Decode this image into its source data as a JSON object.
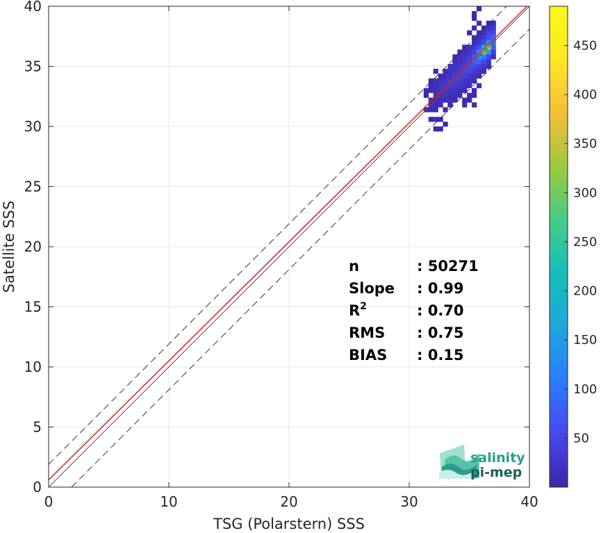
{
  "chart_data": {
    "type": "heatmap",
    "title": "",
    "xlabel": "TSG (Polarstern) SSS",
    "ylabel": "Satellite SSS",
    "xlim": [
      0,
      40
    ],
    "ylim": [
      0,
      40
    ],
    "xticks": [
      0,
      10,
      20,
      30,
      40
    ],
    "yticks": [
      0,
      5,
      10,
      15,
      20,
      25,
      30,
      35,
      40
    ],
    "grid": true,
    "colormap": "parula",
    "colorbar": {
      "range": [
        0,
        490
      ],
      "ticks": [
        50,
        100,
        150,
        200,
        250,
        300,
        350,
        400,
        450
      ],
      "colors": [
        "#3e26a8",
        "#4748f0",
        "#2c7cff",
        "#1ea8db",
        "#13beb8",
        "#48cb86",
        "#9cca3f",
        "#f4bd37",
        "#fde723",
        "#f9fb15"
      ]
    },
    "lines": [
      {
        "name": "1:1 line",
        "intercept": 0,
        "slope": 1,
        "style": "solid",
        "color": "#555555"
      },
      {
        "name": "regression",
        "intercept": 0.6,
        "slope": 0.99,
        "style": "solid",
        "color": "#e41a1c"
      },
      {
        "name": "upper bound",
        "intercept": 1.9,
        "slope": 1,
        "style": "dashed",
        "color": "#333333"
      },
      {
        "name": "lower bound",
        "intercept": -1.9,
        "slope": 1,
        "style": "dashed",
        "color": "#333333"
      }
    ],
    "density_cells": [
      [
        32.0,
        29.6,
        5
      ],
      [
        32.4,
        29.6,
        4
      ],
      [
        32.8,
        30.0,
        5
      ],
      [
        31.6,
        30.4,
        5
      ],
      [
        32.0,
        30.4,
        6
      ],
      [
        32.4,
        30.4,
        5
      ],
      [
        31.2,
        31.2,
        6
      ],
      [
        31.6,
        31.2,
        8
      ],
      [
        32.0,
        31.2,
        7
      ],
      [
        32.8,
        31.2,
        6
      ],
      [
        31.6,
        31.6,
        8
      ],
      [
        32.0,
        31.6,
        10
      ],
      [
        32.4,
        31.6,
        9
      ],
      [
        33.2,
        31.6,
        6
      ],
      [
        34.4,
        31.6,
        8
      ],
      [
        35.2,
        31.6,
        5
      ],
      [
        31.6,
        32.0,
        7
      ],
      [
        32.0,
        32.0,
        9
      ],
      [
        32.4,
        32.0,
        15
      ],
      [
        32.8,
        32.0,
        12
      ],
      [
        33.2,
        32.0,
        10
      ],
      [
        33.6,
        32.0,
        8
      ],
      [
        34.4,
        32.0,
        10
      ],
      [
        34.8,
        32.0,
        8
      ],
      [
        31.2,
        32.4,
        6
      ],
      [
        32.0,
        32.4,
        10
      ],
      [
        32.4,
        32.4,
        18
      ],
      [
        32.8,
        32.4,
        22
      ],
      [
        33.2,
        32.4,
        15
      ],
      [
        33.6,
        32.4,
        12
      ],
      [
        34.0,
        32.4,
        10
      ],
      [
        34.8,
        32.4,
        9
      ],
      [
        35.2,
        32.4,
        7
      ],
      [
        31.2,
        32.8,
        6
      ],
      [
        31.6,
        32.8,
        9
      ],
      [
        32.0,
        32.8,
        12
      ],
      [
        32.4,
        32.8,
        20
      ],
      [
        32.8,
        32.8,
        26
      ],
      [
        33.2,
        32.8,
        24
      ],
      [
        33.6,
        32.8,
        18
      ],
      [
        34.0,
        32.8,
        14
      ],
      [
        34.4,
        32.8,
        12
      ],
      [
        35.2,
        32.8,
        8
      ],
      [
        31.6,
        33.2,
        9
      ],
      [
        32.0,
        33.2,
        14
      ],
      [
        32.4,
        33.2,
        22
      ],
      [
        32.8,
        33.2,
        30
      ],
      [
        33.2,
        33.2,
        34
      ],
      [
        33.6,
        33.2,
        28
      ],
      [
        34.0,
        33.2,
        20
      ],
      [
        34.4,
        33.2,
        16
      ],
      [
        34.8,
        33.2,
        12
      ],
      [
        35.6,
        33.2,
        9
      ],
      [
        31.6,
        33.6,
        7
      ],
      [
        32.0,
        33.6,
        10
      ],
      [
        32.4,
        33.6,
        16
      ],
      [
        32.8,
        33.6,
        24
      ],
      [
        33.2,
        33.6,
        36
      ],
      [
        33.6,
        33.6,
        40
      ],
      [
        34.0,
        33.6,
        34
      ],
      [
        34.4,
        33.6,
        26
      ],
      [
        34.8,
        33.6,
        18
      ],
      [
        35.2,
        33.6,
        14
      ],
      [
        32.4,
        34.0,
        10
      ],
      [
        32.8,
        34.0,
        16
      ],
      [
        33.2,
        34.0,
        26
      ],
      [
        33.6,
        34.0,
        38
      ],
      [
        34.0,
        34.0,
        44
      ],
      [
        34.4,
        34.0,
        40
      ],
      [
        34.8,
        34.0,
        30
      ],
      [
        35.2,
        34.0,
        20
      ],
      [
        35.6,
        34.0,
        12
      ],
      [
        32.0,
        34.4,
        8
      ],
      [
        32.8,
        34.4,
        12
      ],
      [
        33.2,
        34.4,
        18
      ],
      [
        33.6,
        34.4,
        26
      ],
      [
        34.0,
        34.4,
        38
      ],
      [
        34.4,
        34.4,
        50
      ],
      [
        34.8,
        34.4,
        46
      ],
      [
        35.2,
        34.4,
        34
      ],
      [
        35.6,
        34.4,
        22
      ],
      [
        36.0,
        34.4,
        12
      ],
      [
        33.2,
        34.8,
        12
      ],
      [
        33.6,
        34.8,
        18
      ],
      [
        34.0,
        34.8,
        26
      ],
      [
        34.4,
        34.8,
        40
      ],
      [
        34.8,
        34.8,
        62
      ],
      [
        35.2,
        34.8,
        58
      ],
      [
        35.6,
        34.8,
        40
      ],
      [
        36.0,
        34.8,
        22
      ],
      [
        36.4,
        34.8,
        10
      ],
      [
        33.6,
        35.2,
        12
      ],
      [
        34.0,
        35.2,
        18
      ],
      [
        34.4,
        35.2,
        28
      ],
      [
        34.8,
        35.2,
        48
      ],
      [
        35.2,
        35.2,
        90
      ],
      [
        35.6,
        35.2,
        80
      ],
      [
        36.0,
        35.2,
        50
      ],
      [
        36.4,
        35.2,
        24
      ],
      [
        33.6,
        35.6,
        8
      ],
      [
        34.0,
        35.6,
        14
      ],
      [
        34.4,
        35.6,
        20
      ],
      [
        34.8,
        35.6,
        34
      ],
      [
        35.2,
        35.6,
        80
      ],
      [
        35.6,
        35.6,
        150
      ],
      [
        36.0,
        35.6,
        110
      ],
      [
        36.4,
        35.6,
        50
      ],
      [
        36.8,
        35.6,
        18
      ],
      [
        34.0,
        36.0,
        10
      ],
      [
        34.4,
        36.0,
        16
      ],
      [
        34.8,
        36.0,
        24
      ],
      [
        35.2,
        36.0,
        40
      ],
      [
        35.6,
        36.0,
        130
      ],
      [
        36.0,
        36.0,
        310
      ],
      [
        36.4,
        36.0,
        150
      ],
      [
        36.8,
        36.0,
        40
      ],
      [
        34.4,
        36.4,
        10
      ],
      [
        34.8,
        36.4,
        16
      ],
      [
        35.2,
        36.4,
        28
      ],
      [
        35.6,
        36.4,
        60
      ],
      [
        36.0,
        36.4,
        200
      ],
      [
        36.4,
        36.4,
        340
      ],
      [
        36.8,
        36.4,
        80
      ],
      [
        35.2,
        36.8,
        14
      ],
      [
        35.6,
        36.8,
        26
      ],
      [
        36.0,
        36.8,
        60
      ],
      [
        36.4,
        36.8,
        140
      ],
      [
        36.8,
        36.8,
        110
      ],
      [
        35.2,
        37.2,
        8
      ],
      [
        35.6,
        37.2,
        14
      ],
      [
        36.0,
        37.2,
        30
      ],
      [
        36.4,
        37.2,
        60
      ],
      [
        36.8,
        37.2,
        90
      ],
      [
        34.8,
        37.6,
        6
      ],
      [
        35.6,
        37.6,
        10
      ],
      [
        36.0,
        37.6,
        16
      ],
      [
        36.4,
        37.6,
        40
      ],
      [
        36.8,
        37.6,
        50
      ],
      [
        35.2,
        38.0,
        5
      ],
      [
        36.0,
        38.0,
        10
      ],
      [
        36.4,
        38.0,
        20
      ],
      [
        36.8,
        38.0,
        30
      ],
      [
        35.6,
        38.4,
        6
      ],
      [
        36.4,
        38.4,
        8
      ],
      [
        36.8,
        38.4,
        12
      ],
      [
        35.2,
        38.8,
        5
      ],
      [
        35.2,
        39.2,
        4
      ],
      [
        35.6,
        39.6,
        4
      ]
    ],
    "stats": [
      {
        "label": "n",
        "value": ": 50271"
      },
      {
        "label": "Slope",
        "value": ": 0.99"
      },
      {
        "label": "R",
        "sup": "2",
        "value": ": 0.70"
      },
      {
        "label": "RMS",
        "value": ": 0.75"
      },
      {
        "label": "BIAS",
        "value": ": 0.15"
      }
    ]
  },
  "logo": {
    "line1": "salinity",
    "line2": "pi-mep",
    "color1": "#2a9d8f",
    "color2": "#1b5e57"
  }
}
